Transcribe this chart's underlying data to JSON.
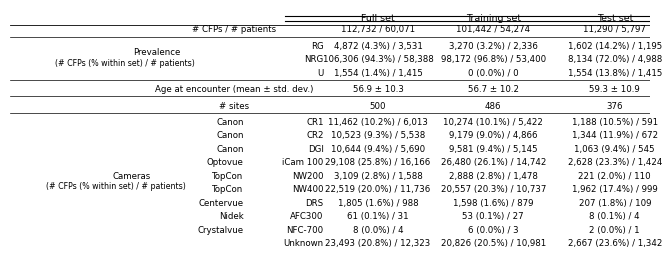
{
  "col_headers": [
    "Full set",
    "Training set",
    "Test set"
  ],
  "c_full": 0.575,
  "c_train": 0.755,
  "c_test": 0.945,
  "rows": [
    {
      "label_center": "# CFPs / # patients",
      "label_left": "",
      "label_mid": "",
      "values": [
        "112,732 / 60,071",
        "101,442 / 54,274",
        "11,290 / 5,797"
      ],
      "separator_after": true
    },
    {
      "label_center": "",
      "label_left": "",
      "label_mid": "RG",
      "values": [
        "4,872 (4.3%) / 3,531",
        "3,270 (3.2%) / 2,336",
        "1,602 (14.2%) / 1,195"
      ],
      "separator_after": false
    },
    {
      "label_center": "",
      "label_left": "",
      "label_mid": "NRG",
      "values": [
        "106,306 (94.3%) / 58,388",
        "98,172 (96.8%) / 53,400",
        "8,134 (72.0%) / 4,988"
      ],
      "separator_after": false
    },
    {
      "label_center": "",
      "label_left": "",
      "label_mid": "U",
      "values": [
        "1,554 (1.4%) / 1,415",
        "0 (0.0%) / 0",
        "1,554 (13.8%) / 1,415"
      ],
      "separator_after": true
    },
    {
      "label_center": "Age at encounter (mean ± std. dev.)",
      "label_left": "",
      "label_mid": "",
      "values": [
        "56.9 ± 10.3",
        "56.7 ± 10.2",
        "59.3 ± 10.9"
      ],
      "separator_after": true
    },
    {
      "label_center": "# sites",
      "label_left": "",
      "label_mid": "",
      "values": [
        "500",
        "486",
        "376"
      ],
      "separator_after": true
    },
    {
      "label_center": "",
      "label_left": "",
      "label_mid": "Canon",
      "label_right": "CR1",
      "values": [
        "11,462 (10.2%) / 6,013",
        "10,274 (10.1%) / 5,422",
        "1,188 (10.5%) / 591"
      ],
      "separator_after": false
    },
    {
      "label_center": "",
      "label_left": "",
      "label_mid": "Canon",
      "label_right": "CR2",
      "values": [
        "10,523 (9.3%) / 5,538",
        "9,179 (9.0%) / 4,866",
        "1,344 (11.9%) / 672"
      ],
      "separator_after": false
    },
    {
      "label_center": "",
      "label_left": "",
      "label_mid": "Canon",
      "label_right": "DGI",
      "values": [
        "10,644 (9.4%) / 5,690",
        "9,581 (9.4%) / 5,145",
        "1,063 (9.4%) / 545"
      ],
      "separator_after": false
    },
    {
      "label_center": "",
      "label_left": "",
      "label_mid": "Optovue",
      "label_right": "iCam 100",
      "values": [
        "29,108 (25.8%) / 16,166",
        "26,480 (26.1%) / 14,742",
        "2,628 (23.3%) / 1,424"
      ],
      "separator_after": false
    },
    {
      "label_center": "",
      "label_left": "",
      "label_mid": "TopCon",
      "label_right": "NW200",
      "values": [
        "3,109 (2.8%) / 1,588",
        "2,888 (2.8%) / 1,478",
        "221 (2.0%) / 110"
      ],
      "separator_after": false
    },
    {
      "label_center": "",
      "label_left": "",
      "label_mid": "TopCon",
      "label_right": "NW400",
      "values": [
        "22,519 (20.0%) / 11,736",
        "20,557 (20.3%) / 10,737",
        "1,962 (17.4%) / 999"
      ],
      "separator_after": false
    },
    {
      "label_center": "",
      "label_left": "",
      "label_mid": "Centervue",
      "label_right": "DRS",
      "values": [
        "1,805 (1.6%) / 988",
        "1,598 (1.6%) / 879",
        "207 (1.8%) / 109"
      ],
      "separator_after": false
    },
    {
      "label_center": "",
      "label_left": "",
      "label_mid": "Nidek",
      "label_right": "AFC300",
      "values": [
        "61 (0.1%) / 31",
        "53 (0.1%) / 27",
        "8 (0.1%) / 4"
      ],
      "separator_after": false
    },
    {
      "label_center": "",
      "label_left": "",
      "label_mid": "Crystalvue",
      "label_right": "NFC-700",
      "values": [
        "8 (0.0%) / 4",
        "6 (0.0%) / 3",
        "2 (0.0%) / 1"
      ],
      "separator_after": false
    },
    {
      "label_center": "",
      "label_left": "",
      "label_mid": "Unknown",
      "label_right": "",
      "values": [
        "23,493 (20.8%) / 12,323",
        "20,826 (20.5%) / 10,981",
        "2,667 (23.6%) / 1,342"
      ],
      "separator_after": false
    }
  ],
  "prev_block_rows": [
    1,
    2,
    3
  ],
  "cam_block_rows": [
    6,
    7,
    8,
    9,
    10,
    11,
    12,
    13,
    14,
    15
  ],
  "fontsize": 6.2,
  "header_fontsize": 6.8
}
